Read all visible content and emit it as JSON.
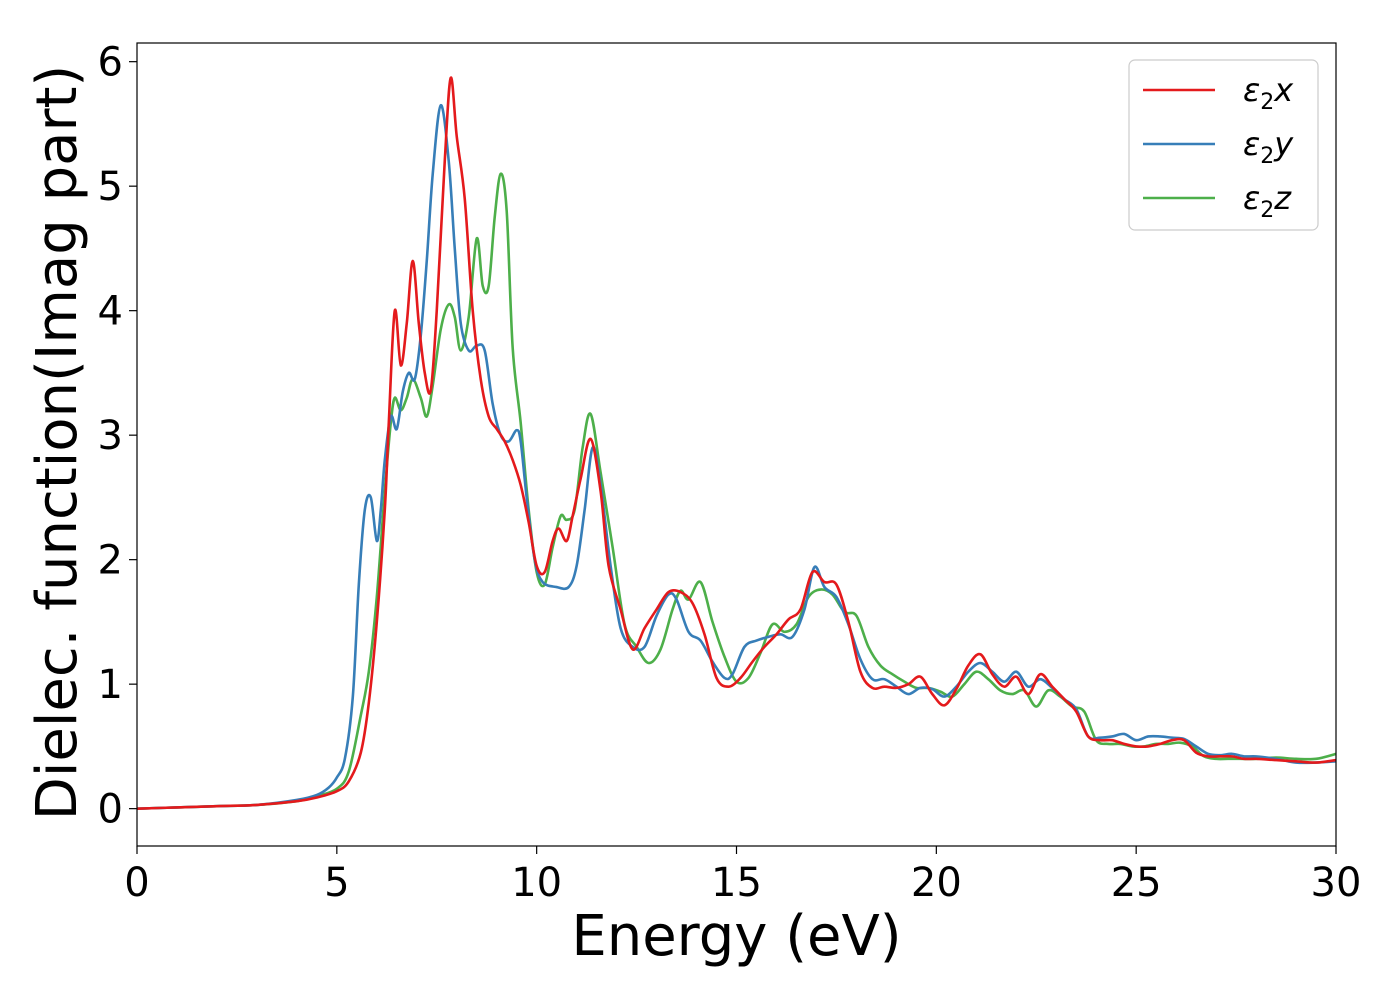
{
  "chart_data": {
    "type": "line",
    "xlabel": "Energy (eV)",
    "ylabel": "Dielec. function(Imag part)",
    "xlim": [
      0,
      30
    ],
    "ylim": [
      -0.3,
      6.15
    ],
    "xticks": [
      0,
      5,
      10,
      15,
      20,
      25,
      30
    ],
    "yticks": [
      0,
      1,
      2,
      3,
      4,
      5,
      6
    ],
    "grid": false,
    "legend_position": "top-right",
    "series": [
      {
        "name": "ε₂x",
        "legend_base": "ε",
        "legend_sub": "2",
        "legend_suffix": "x",
        "color": "#e41a1c",
        "x": [
          0,
          1,
          2,
          3,
          4,
          4.5,
          5,
          5.3,
          5.6,
          5.8,
          6.0,
          6.2,
          6.3,
          6.45,
          6.6,
          6.75,
          6.9,
          7.05,
          7.2,
          7.35,
          7.5,
          7.7,
          7.85,
          8.0,
          8.2,
          8.4,
          8.6,
          8.8,
          9.0,
          9.2,
          9.4,
          9.6,
          9.8,
          10.0,
          10.2,
          10.4,
          10.55,
          10.75,
          10.9,
          11.1,
          11.35,
          11.6,
          11.8,
          12.1,
          12.4,
          12.7,
          13.0,
          13.3,
          13.6,
          13.9,
          14.2,
          14.5,
          14.8,
          15.1,
          15.4,
          15.7,
          16.0,
          16.3,
          16.6,
          16.9,
          17.2,
          17.5,
          17.8,
          18.1,
          18.4,
          18.7,
          19.0,
          19.3,
          19.6,
          19.9,
          20.2,
          20.5,
          20.8,
          21.1,
          21.4,
          21.7,
          22.0,
          22.3,
          22.6,
          22.9,
          23.2,
          23.5,
          23.8,
          24.1,
          24.4,
          24.7,
          25.0,
          25.3,
          25.6,
          25.9,
          26.2,
          26.5,
          26.8,
          27.1,
          27.4,
          27.7,
          28.0,
          28.5,
          29.0,
          29.5,
          30.0
        ],
        "y": [
          0.0,
          0.01,
          0.02,
          0.03,
          0.06,
          0.09,
          0.14,
          0.22,
          0.45,
          0.85,
          1.5,
          2.4,
          3.1,
          4.0,
          3.56,
          3.9,
          4.4,
          3.9,
          3.5,
          3.36,
          4.0,
          5.2,
          5.87,
          5.4,
          4.9,
          4.0,
          3.45,
          3.15,
          3.05,
          2.95,
          2.8,
          2.6,
          2.3,
          1.95,
          1.9,
          2.15,
          2.25,
          2.15,
          2.35,
          2.65,
          2.97,
          2.55,
          1.95,
          1.6,
          1.28,
          1.45,
          1.6,
          1.74,
          1.74,
          1.65,
          1.4,
          1.05,
          0.98,
          1.05,
          1.18,
          1.3,
          1.4,
          1.52,
          1.6,
          1.9,
          1.82,
          1.8,
          1.5,
          1.1,
          0.97,
          0.98,
          0.97,
          1.0,
          1.06,
          0.92,
          0.83,
          0.96,
          1.15,
          1.24,
          1.08,
          0.98,
          1.06,
          0.92,
          1.08,
          0.98,
          0.88,
          0.78,
          0.58,
          0.55,
          0.55,
          0.52,
          0.5,
          0.5,
          0.52,
          0.55,
          0.55,
          0.45,
          0.42,
          0.42,
          0.42,
          0.4,
          0.4,
          0.39,
          0.38,
          0.37,
          0.39
        ]
      },
      {
        "name": "ε₂y",
        "legend_base": "ε",
        "legend_sub": "2",
        "legend_suffix": "y",
        "color": "#377eb8",
        "x": [
          0,
          1,
          2,
          3,
          4,
          4.5,
          4.8,
          5.0,
          5.2,
          5.4,
          5.55,
          5.7,
          5.85,
          6.0,
          6.1,
          6.2,
          6.35,
          6.5,
          6.65,
          6.8,
          6.95,
          7.1,
          7.25,
          7.4,
          7.6,
          7.8,
          7.95,
          8.1,
          8.3,
          8.5,
          8.7,
          8.9,
          9.1,
          9.3,
          9.5,
          9.6,
          9.75,
          9.95,
          10.15,
          10.5,
          10.8,
          11.0,
          11.2,
          11.4,
          11.6,
          11.85,
          12.1,
          12.4,
          12.7,
          13.0,
          13.3,
          13.5,
          13.8,
          14.1,
          14.4,
          14.7,
          14.9,
          15.2,
          15.5,
          15.8,
          16.1,
          16.4,
          16.7,
          16.95,
          17.2,
          17.5,
          17.8,
          18.1,
          18.4,
          18.7,
          19.0,
          19.3,
          19.6,
          19.9,
          20.2,
          20.5,
          20.8,
          21.1,
          21.4,
          21.7,
          22.0,
          22.3,
          22.6,
          22.9,
          23.2,
          23.5,
          23.8,
          24.1,
          24.4,
          24.7,
          25.0,
          25.3,
          25.6,
          25.9,
          26.2,
          26.5,
          26.8,
          27.1,
          27.4,
          27.7,
          28.0,
          28.5,
          29.0,
          29.5,
          30.0
        ],
        "y": [
          0.0,
          0.01,
          0.02,
          0.03,
          0.07,
          0.11,
          0.17,
          0.25,
          0.4,
          0.9,
          1.8,
          2.4,
          2.5,
          2.15,
          2.4,
          2.8,
          3.15,
          3.05,
          3.35,
          3.5,
          3.45,
          3.8,
          4.4,
          5.1,
          5.65,
          5.2,
          4.5,
          3.9,
          3.68,
          3.72,
          3.68,
          3.25,
          3.0,
          2.95,
          3.04,
          2.95,
          2.5,
          2.0,
          1.82,
          1.78,
          1.78,
          1.95,
          2.4,
          2.9,
          2.6,
          1.95,
          1.45,
          1.3,
          1.3,
          1.55,
          1.72,
          1.68,
          1.42,
          1.35,
          1.18,
          1.05,
          1.08,
          1.3,
          1.35,
          1.38,
          1.4,
          1.38,
          1.6,
          1.94,
          1.78,
          1.7,
          1.48,
          1.2,
          1.04,
          1.04,
          0.98,
          0.92,
          0.97,
          0.96,
          0.9,
          0.98,
          1.1,
          1.17,
          1.1,
          1.02,
          1.1,
          0.98,
          1.04,
          0.97,
          0.88,
          0.8,
          0.58,
          0.57,
          0.58,
          0.6,
          0.55,
          0.58,
          0.58,
          0.57,
          0.56,
          0.5,
          0.44,
          0.43,
          0.44,
          0.42,
          0.42,
          0.4,
          0.37,
          0.37,
          0.38
        ]
      },
      {
        "name": "ε₂z",
        "legend_base": "ε",
        "legend_sub": "2",
        "legend_suffix": "z",
        "color": "#4daf4a",
        "x": [
          0,
          1,
          2,
          3,
          4,
          4.5,
          5.0,
          5.3,
          5.6,
          5.8,
          6.0,
          6.2,
          6.35,
          6.45,
          6.6,
          6.75,
          6.9,
          7.1,
          7.25,
          7.4,
          7.6,
          7.8,
          7.95,
          8.1,
          8.3,
          8.5,
          8.65,
          8.8,
          8.95,
          9.1,
          9.25,
          9.4,
          9.6,
          9.8,
          10.0,
          10.2,
          10.4,
          10.6,
          10.75,
          10.95,
          11.15,
          11.35,
          11.6,
          11.9,
          12.2,
          12.5,
          12.8,
          13.1,
          13.4,
          13.6,
          13.8,
          14.1,
          14.4,
          14.7,
          15.0,
          15.3,
          15.6,
          15.9,
          16.2,
          16.5,
          16.8,
          17.1,
          17.4,
          17.7,
          18.0,
          18.3,
          18.6,
          18.9,
          19.2,
          19.5,
          19.8,
          20.1,
          20.4,
          20.7,
          21.0,
          21.3,
          21.6,
          21.9,
          22.2,
          22.5,
          22.8,
          23.1,
          23.4,
          23.7,
          24.0,
          24.3,
          24.6,
          24.9,
          25.2,
          25.5,
          25.8,
          26.1,
          26.4,
          26.7,
          27.0,
          27.3,
          27.6,
          28.0,
          28.5,
          29.0,
          29.5,
          30.0
        ],
        "y": [
          0.0,
          0.01,
          0.02,
          0.03,
          0.06,
          0.1,
          0.16,
          0.3,
          0.75,
          1.1,
          1.7,
          2.55,
          3.1,
          3.3,
          3.2,
          3.3,
          3.45,
          3.3,
          3.15,
          3.4,
          3.85,
          4.05,
          3.95,
          3.68,
          3.95,
          4.58,
          4.2,
          4.2,
          4.75,
          5.1,
          4.8,
          3.7,
          3.1,
          2.4,
          1.9,
          1.8,
          2.1,
          2.35,
          2.32,
          2.4,
          2.9,
          3.17,
          2.7,
          2.1,
          1.48,
          1.3,
          1.17,
          1.28,
          1.6,
          1.75,
          1.68,
          1.82,
          1.5,
          1.22,
          1.02,
          1.05,
          1.25,
          1.48,
          1.42,
          1.48,
          1.7,
          1.76,
          1.72,
          1.58,
          1.55,
          1.3,
          1.15,
          1.08,
          1.02,
          0.97,
          0.97,
          0.94,
          0.9,
          1.0,
          1.1,
          1.04,
          0.95,
          0.92,
          0.95,
          0.82,
          0.95,
          0.9,
          0.82,
          0.78,
          0.55,
          0.52,
          0.52,
          0.5,
          0.5,
          0.52,
          0.52,
          0.53,
          0.5,
          0.42,
          0.4,
          0.4,
          0.4,
          0.4,
          0.41,
          0.4,
          0.4,
          0.44
        ]
      }
    ]
  }
}
